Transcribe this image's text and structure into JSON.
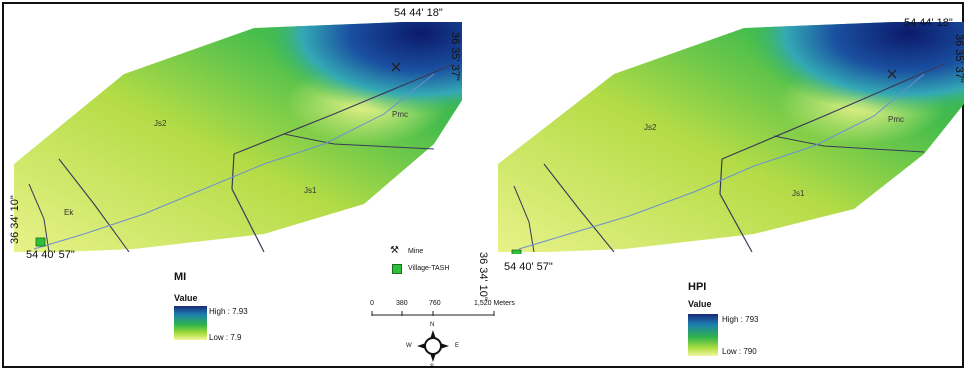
{
  "maps": [
    {
      "coord_top_right": "54 44' 18\"",
      "coord_right_vertical": "36 35' 37\"",
      "coord_left_vertical": "36 34' 10\"",
      "coord_bottom_left": "54 40' 57\"",
      "labels": [
        "Js2",
        "Pmc",
        "Js1",
        "Ek"
      ],
      "legend": {
        "title": "MI",
        "subtitle": "Value",
        "high": "High : 7.93",
        "low": "Low : 7.9"
      }
    },
    {
      "coord_top_right": "54 44' 18\"",
      "coord_right_vertical": "36 35' 37\"",
      "coord_left_vertical": "36 34' 10\"",
      "coord_bottom_left": "54 40' 57\"",
      "labels": [
        "Js2",
        "Pmc",
        "Js1"
      ],
      "legend": {
        "title": "HPI",
        "subtitle": "Value",
        "high": "High : 793",
        "low": "Low : 790"
      }
    }
  ],
  "symbols": {
    "mine": "Mine",
    "village": "Village-TASH"
  },
  "scale": {
    "ticks": [
      "0",
      "380",
      "760",
      "1,520 Meters"
    ]
  },
  "north_arrow": {
    "n": "N",
    "s": "S",
    "e": "E",
    "w": "W"
  },
  "colors": {
    "high": "#1a2a7a",
    "mid": "#2fb34a",
    "low": "#f4f7a0",
    "village": "#2fbf3a"
  },
  "icons": {
    "mine": "pick-hammer-icon",
    "village": "green-square-icon"
  }
}
